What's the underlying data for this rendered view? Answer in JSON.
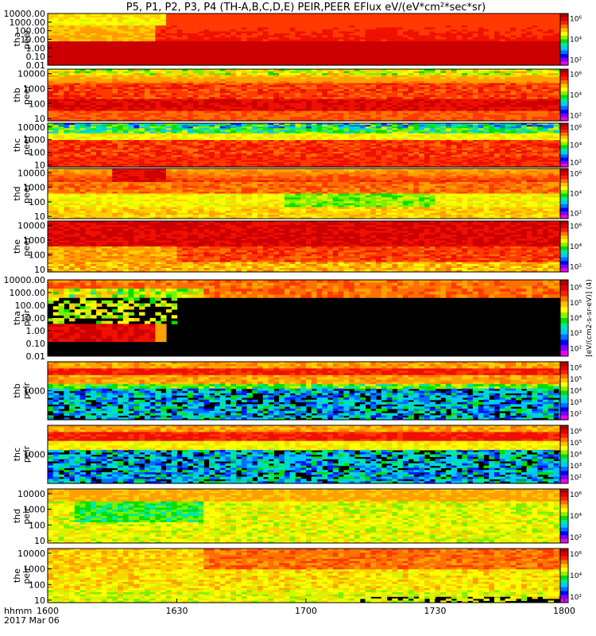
{
  "title": "P5, P1, P2, P3, P4 (TH-A,B,C,D,E) PEIR,PEER EFlux eV/(eV*cm²*sec*sr)",
  "colorbar_label": "[eV/(cm2-s-sr-eV)] (4)",
  "time_axis": {
    "corner_line1": "hhmm",
    "corner_line2": "2017 Mar 06",
    "ticks": [
      "1600",
      "1630",
      "1700",
      "1730",
      "1800"
    ]
  },
  "colorbar_colors": [
    "#f000f0",
    "#7c00ff",
    "#0000ff",
    "#0070ff",
    "#00c8ff",
    "#00e8a0",
    "#00e000",
    "#90f000",
    "#ffff00",
    "#ffc000",
    "#ff7000",
    "#ff2000",
    "#e00000",
    "#b00000"
  ],
  "colorbar_ticks": [
    "10²",
    "10³",
    "10⁴",
    "10⁵",
    "10⁶"
  ],
  "chart_data": {
    "type": "heatmap",
    "x_label": "hhmm",
    "x_range": [
      "1600",
      "1800"
    ],
    "color_scale": "log",
    "color_range": [
      100,
      1000000
    ],
    "panels": [
      {
        "name": "tha peer",
        "ylabel": [
          "tha",
          "peer"
        ],
        "ylim": [
          0.01,
          10000
        ],
        "yticks": [
          "10000.00",
          "1000.00",
          "100.00",
          "10.00",
          "1.00",
          "0.10",
          "0.01"
        ]
      },
      {
        "name": "thb peer",
        "ylabel": [
          "thb",
          "peer"
        ],
        "ylim": [
          7,
          20000
        ],
        "yticks": [
          "10000",
          "1000",
          "100",
          "10"
        ]
      },
      {
        "name": "thc peer",
        "ylabel": [
          "thc",
          "peer"
        ],
        "ylim": [
          7,
          20000
        ],
        "yticks": [
          "10000",
          "1000",
          "100",
          "10"
        ]
      },
      {
        "name": "thd peer",
        "ylabel": [
          "thd",
          "peer"
        ],
        "ylim": [
          7,
          20000
        ],
        "yticks": [
          "10000",
          "1000",
          "100",
          "10"
        ]
      },
      {
        "name": "the peer",
        "ylabel": [
          "the",
          "peer"
        ],
        "ylim": [
          7,
          20000
        ],
        "yticks": [
          "10000",
          "1000",
          "100",
          "10"
        ]
      },
      {
        "name": "tha peir",
        "ylabel": [
          "tha",
          "peir"
        ],
        "ylim": [
          0.01,
          10000
        ],
        "yticks": [
          "10000.00",
          "1000.00",
          "100.00",
          "10.00",
          "1.00",
          "0.10",
          "0.01"
        ]
      },
      {
        "name": "thb peir",
        "ylabel": [
          "thb",
          "peir"
        ],
        "ylim": [
          100,
          10000
        ],
        "yticks": [
          "1000"
        ]
      },
      {
        "name": "thc peir",
        "ylabel": [
          "thc",
          "peir"
        ],
        "ylim": [
          100,
          10000
        ],
        "yticks": [
          "1000"
        ]
      },
      {
        "name": "thd peir",
        "ylabel": [
          "thd",
          "peir"
        ],
        "ylim": [
          7,
          20000
        ],
        "yticks": [
          "10000",
          "1000",
          "100",
          "10"
        ]
      },
      {
        "name": "the peir",
        "ylabel": [
          "the",
          "peir"
        ],
        "ylim": [
          7,
          20000
        ],
        "yticks": [
          "10000",
          "1000",
          "100",
          "10"
        ]
      }
    ]
  }
}
